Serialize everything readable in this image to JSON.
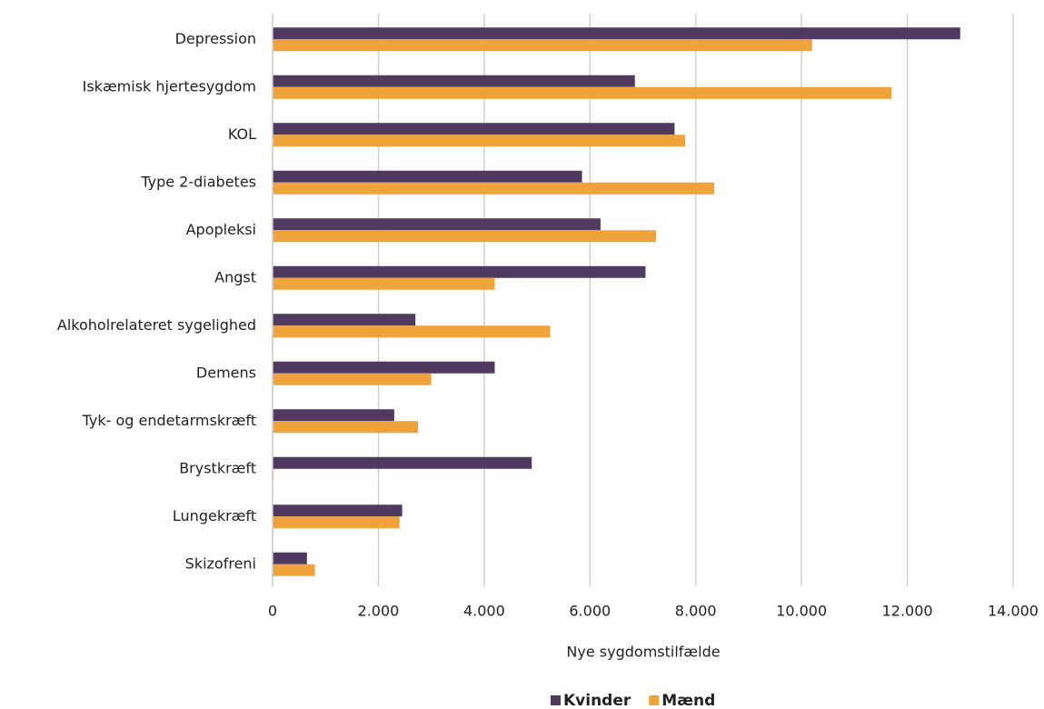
{
  "chart_data": {
    "type": "hbar",
    "x_label": "Nye sygdomstilfælde",
    "categories": [
      "Depression",
      "Iskæmisk hjertesygdom",
      "KOL",
      "Type 2-diabetes",
      "Apopleksi",
      "Angst",
      "Alkoholrelateret sygelighed",
      "Demens",
      "Tyk- og endetarmskræft",
      "Brystkræft",
      "Lungekræft",
      "Skizofreni"
    ],
    "series": [
      {
        "name": "Kvinder",
        "color": "#503a5f",
        "values": [
          13000,
          6850,
          7600,
          5850,
          6200,
          7050,
          2700,
          4200,
          2300,
          4900,
          2450,
          650
        ]
      },
      {
        "name": "Mænd",
        "color": "#f0a33b",
        "values": [
          10200,
          11700,
          7800,
          8350,
          7250,
          4200,
          5250,
          3000,
          2750,
          20,
          2400,
          800
        ]
      }
    ],
    "xlim": [
      0,
      14000
    ],
    "xticks": [
      0,
      {
        "value": 2000,
        "label": "2.000"
      },
      {
        "value": 4000,
        "label": "4.000"
      },
      {
        "value": 6000,
        "label": "6.000"
      },
      {
        "value": 8000,
        "label": "8.000"
      },
      {
        "value": 10000,
        "label": "10.000"
      },
      {
        "value": 12000,
        "label": "12.000"
      },
      {
        "value": 14000,
        "label": "14.000"
      }
    ],
    "grid": true,
    "legend": "bottom"
  }
}
